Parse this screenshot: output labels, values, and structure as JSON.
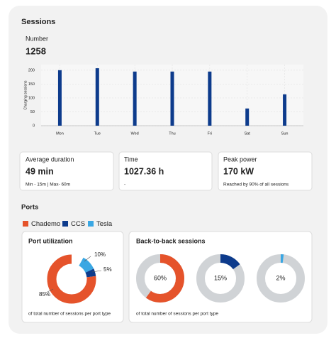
{
  "sessions": {
    "title": "Sessions",
    "metric_label": "Number",
    "metric_value": 1258
  },
  "stats": [
    {
      "label": "Average duration",
      "value": "49 min",
      "note": "Min - 15m | Max- 60m"
    },
    {
      "label": "Time",
      "value": "1027.36 h",
      "note": "-"
    },
    {
      "label": "Peak power",
      "value": "170 kW",
      "note": "Reached by 90% of all sessions"
    }
  ],
  "ports": {
    "title": "Ports"
  },
  "chart_data": [
    {
      "type": "bar",
      "ylabel": "Charging sessions",
      "categories": [
        "Mon",
        "Tue",
        "Wed",
        "Thu",
        "Fri",
        "Sat",
        "Sun"
      ],
      "values": [
        200,
        207,
        195,
        195,
        195,
        62,
        113
      ],
      "color": "#0d3b8c",
      "ylim": [
        0,
        220
      ],
      "yticks": [
        0,
        50,
        100,
        150,
        200
      ],
      "grid": true
    },
    {
      "type": "pie",
      "title": "Port utilization",
      "note": "of total number of sessions per port type",
      "categories": [
        "Chademo",
        "CCS",
        "Tesla"
      ],
      "values": [
        85,
        5,
        10
      ],
      "value_labels": [
        "85%",
        "5%",
        "10%"
      ],
      "colors": [
        "#e5532b",
        "#0d3b8c",
        "#3aa7e3"
      ]
    },
    {
      "type": "donut",
      "title": "Back-to-back sessions",
      "note": "of total number of sessions per port type",
      "values": [
        60,
        15,
        2
      ],
      "value_labels": [
        "60%",
        "15%",
        "2%"
      ],
      "colors": [
        "#e5532b",
        "#0d3b8c",
        "#3aa7e3"
      ]
    }
  ]
}
